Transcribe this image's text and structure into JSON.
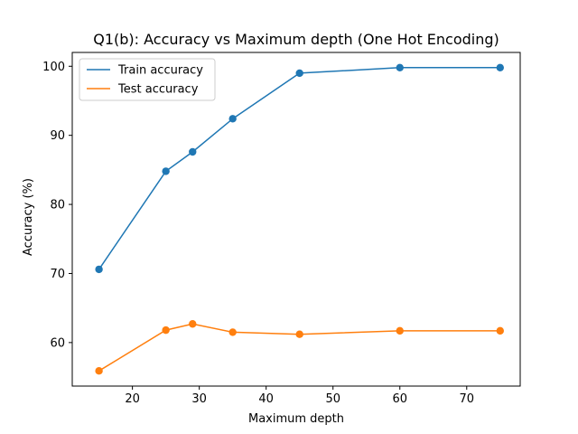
{
  "chart_data": {
    "type": "line",
    "title": "Q1(b): Accuracy vs Maximum depth (One Hot Encoding)",
    "xlabel": "Maximum depth",
    "ylabel": "Accuracy (%)",
    "x": [
      15,
      25,
      29,
      35,
      45,
      60,
      75
    ],
    "series": [
      {
        "name": "Train accuracy",
        "color": "#1f77b4",
        "values": [
          70.6,
          84.8,
          87.6,
          92.4,
          99.0,
          99.8,
          99.8
        ]
      },
      {
        "name": "Test accuracy",
        "color": "#ff7f0e",
        "values": [
          55.9,
          61.8,
          62.7,
          61.5,
          61.2,
          61.7,
          61.7
        ]
      }
    ],
    "xlim": [
      11,
      78
    ],
    "ylim": [
      53.7,
      102.0
    ],
    "xticks": [
      20,
      30,
      40,
      50,
      60,
      70
    ],
    "yticks": [
      60,
      70,
      80,
      90,
      100
    ],
    "legend_position": "upper-left",
    "grid": false,
    "markers": "circle"
  }
}
